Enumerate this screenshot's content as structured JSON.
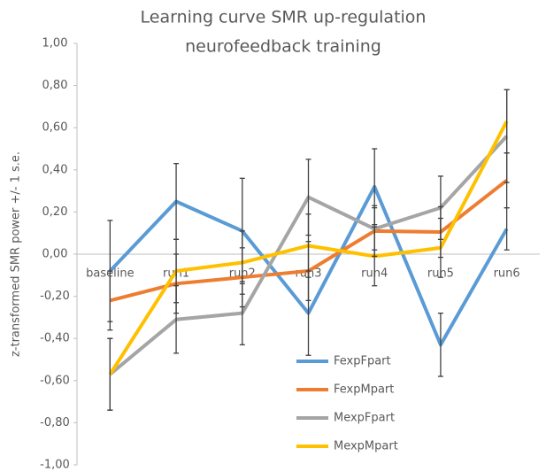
{
  "chart_data": {
    "type": "line",
    "title": [
      "Learning curve  SMR up-regulation",
      "neurofeedback training"
    ],
    "ylabel": "z-transformed SMR power +/- 1 s.e.",
    "categories": [
      "baseline",
      "run1",
      "run2",
      "run3",
      "run4",
      "run5",
      "run6"
    ],
    "series": [
      {
        "name": "FexpFpart",
        "color": "#5b9bd5",
        "values": [
          -0.08,
          0.25,
          0.11,
          -0.28,
          0.32,
          -0.43,
          0.12
        ],
        "errors": [
          0.24,
          0.18,
          0.25,
          0.2,
          0.18,
          0.15,
          0.1
        ]
      },
      {
        "name": "FexpMpart",
        "color": "#ed7d31",
        "values": [
          -0.22,
          -0.14,
          -0.11,
          -0.08,
          0.11,
          0.105,
          0.35
        ],
        "errors": [
          0.14,
          0.14,
          0.14,
          0.14,
          0.12,
          0.12,
          0.13
        ]
      },
      {
        "name": "MexpFpart",
        "color": "#a5a5a5",
        "values": [
          -0.57,
          -0.31,
          -0.28,
          0.27,
          0.12,
          0.22,
          0.56
        ],
        "errors": [
          0.17,
          0.16,
          0.15,
          0.18,
          0.1,
          0.15,
          0.22
        ]
      },
      {
        "name": "MexpMpart",
        "color": "#ffc000",
        "values": [
          -0.57,
          -0.08,
          -0.04,
          0.04,
          -0.01,
          0.03,
          0.63
        ],
        "errors": [
          0.17,
          0.15,
          0.15,
          0.15,
          0.14,
          0.14,
          0.15
        ]
      }
    ],
    "ylim": [
      -1,
      1
    ],
    "yticks": [
      {
        "value": -1,
        "label": "-1,00"
      },
      {
        "value": -0.8,
        "label": "-0,80"
      },
      {
        "value": -0.6,
        "label": "-0,60"
      },
      {
        "value": -0.4,
        "label": "-0,40"
      },
      {
        "value": -0.2,
        "label": "-0,20"
      },
      {
        "value": 0,
        "label": "0,00"
      },
      {
        "value": 0.2,
        "label": "0,20"
      },
      {
        "value": 0.4,
        "label": "0,40"
      },
      {
        "value": 0.6,
        "label": "0,60"
      },
      {
        "value": 0.8,
        "label": "0,80"
      },
      {
        "value": 1,
        "label": "1,00"
      }
    ],
    "legend": "lower right"
  }
}
